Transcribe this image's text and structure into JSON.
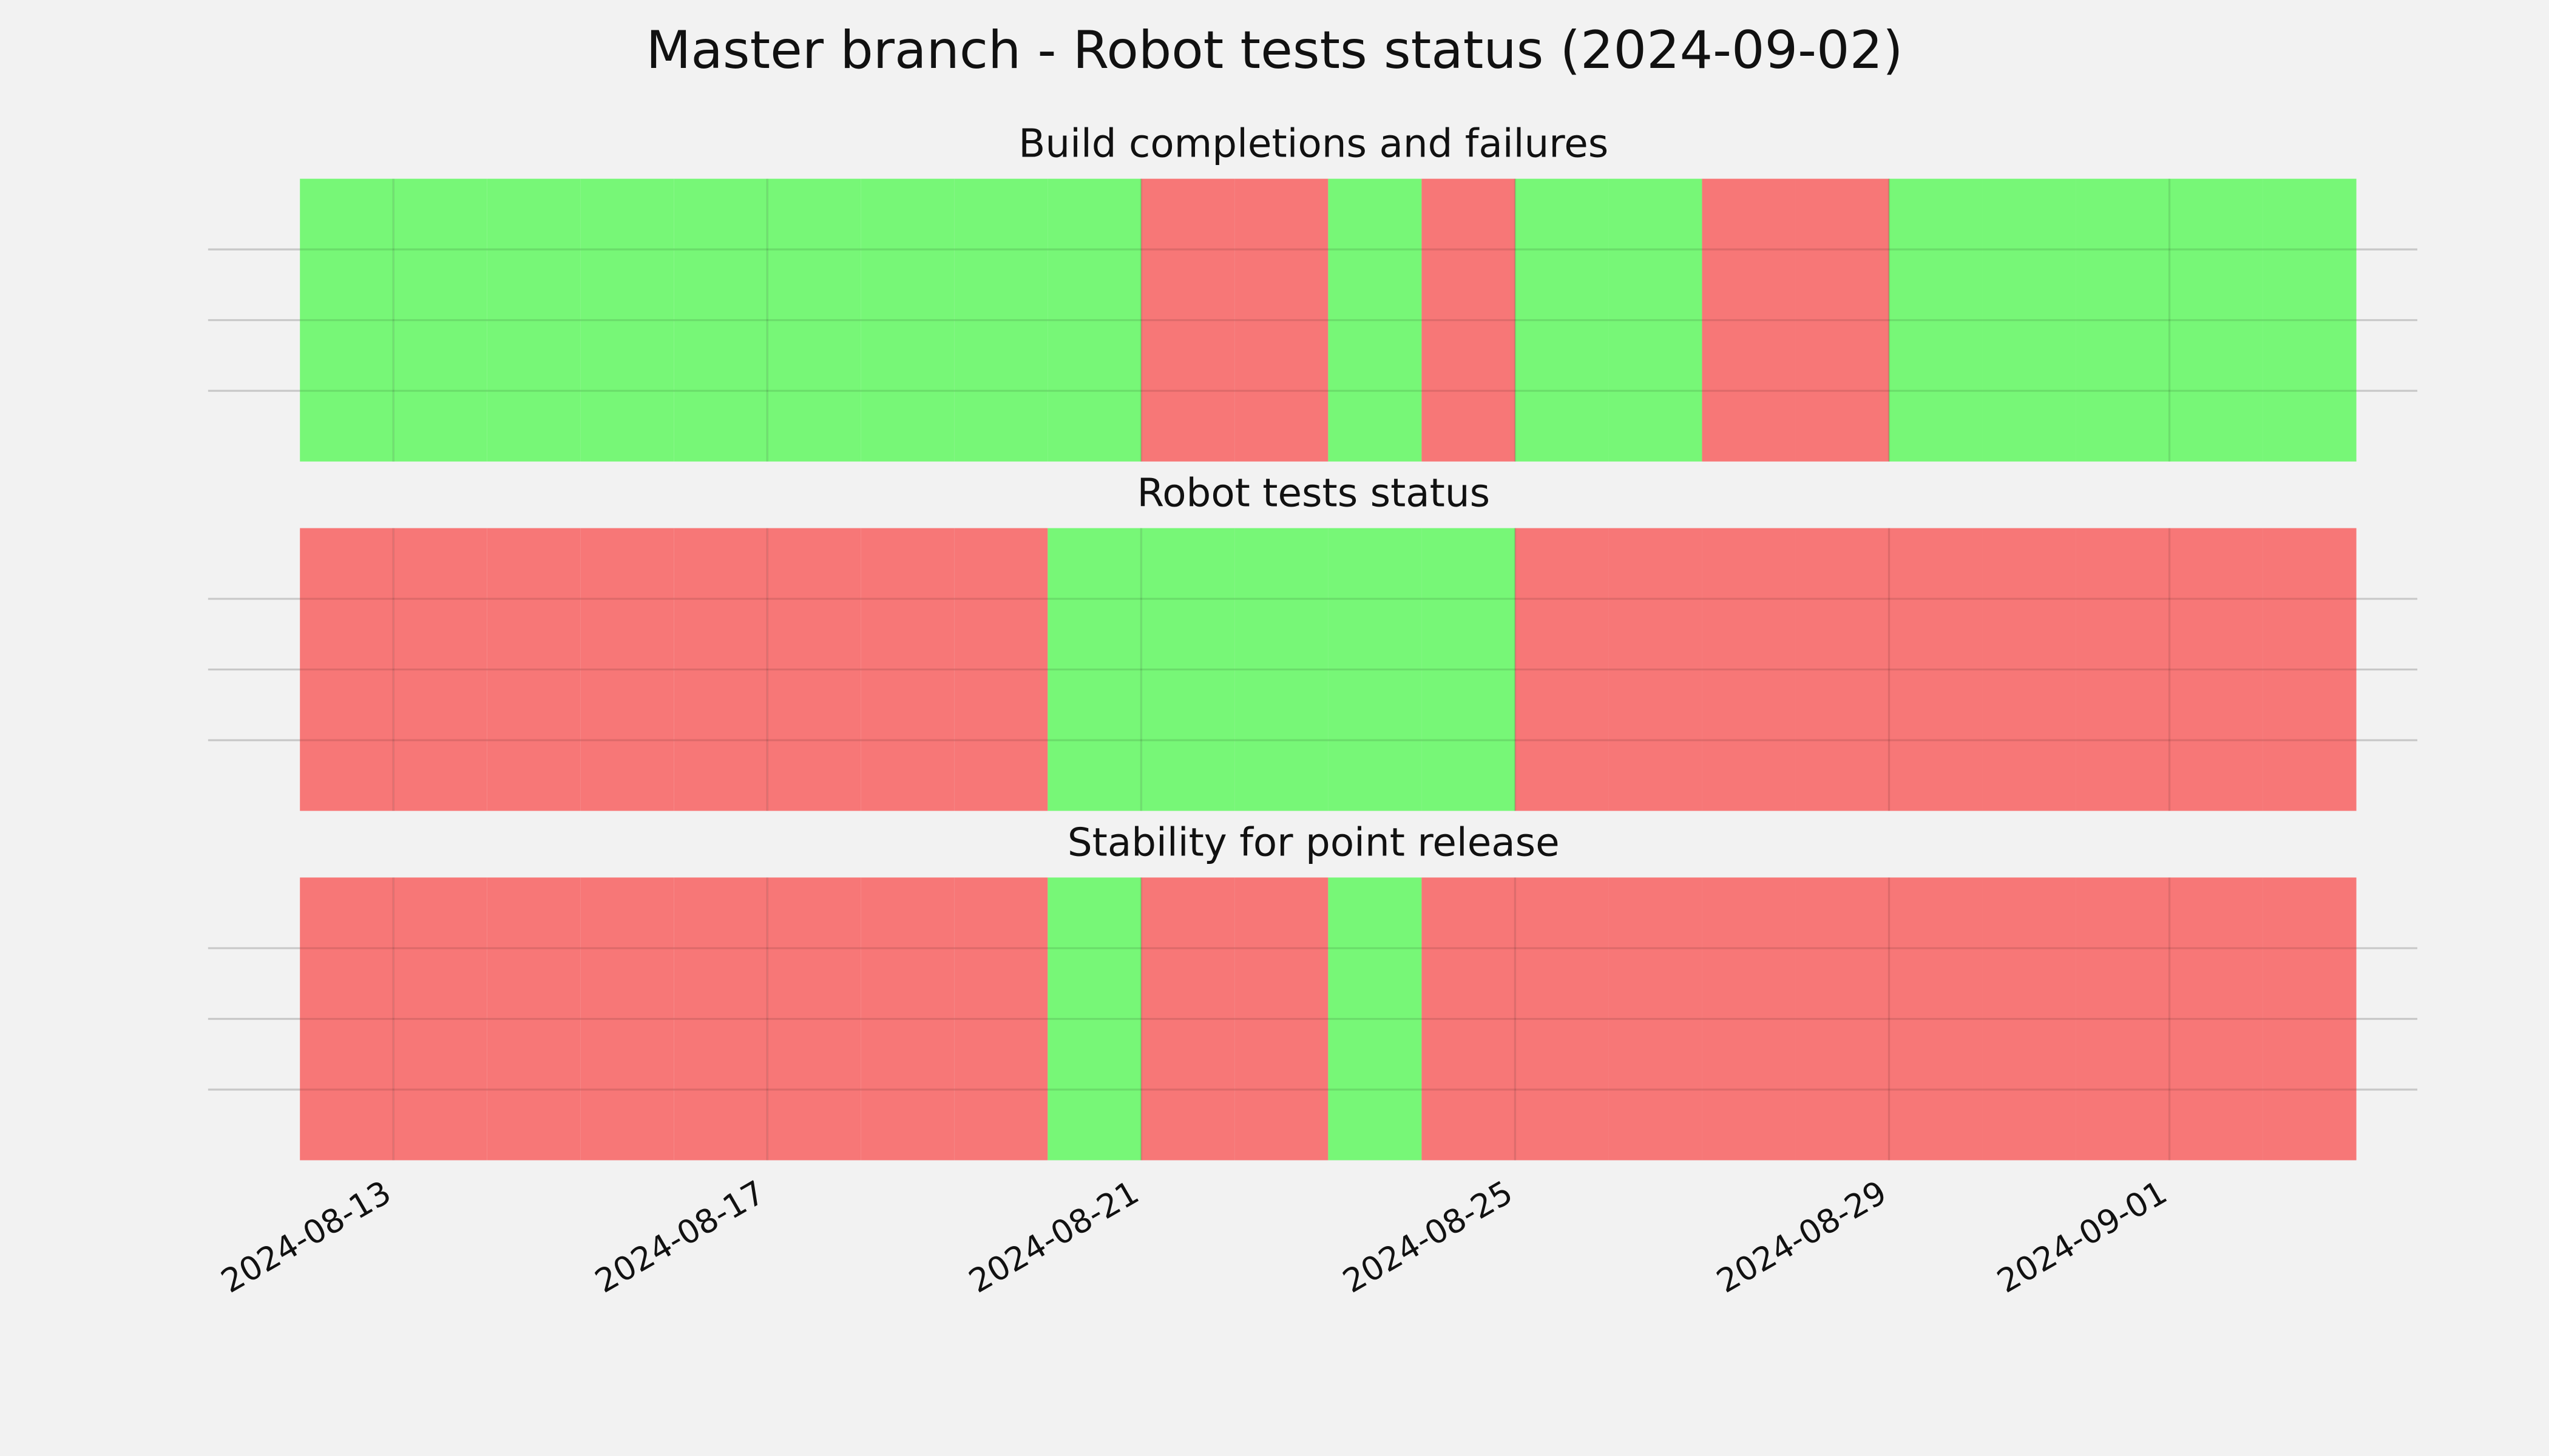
{
  "chart_data": {
    "type": "timeline",
    "title": "Master branch - Robot tests status (2024-09-02)",
    "x": [
      "2024-08-12",
      "2024-08-13",
      "2024-08-14",
      "2024-08-15",
      "2024-08-16",
      "2024-08-17",
      "2024-08-18",
      "2024-08-19",
      "2024-08-20",
      "2024-08-21",
      "2024-08-22",
      "2024-08-23",
      "2024-08-24",
      "2024-08-25",
      "2024-08-26",
      "2024-08-27",
      "2024-08-28",
      "2024-08-29",
      "2024-08-30",
      "2024-08-31",
      "2024-09-01",
      "2024-09-02"
    ],
    "xlim": [
      "2024-08-11",
      "2024-09-04"
    ],
    "xticks": [
      "2024-08-13",
      "2024-08-17",
      "2024-08-21",
      "2024-08-25",
      "2024-08-29",
      "2024-09-01"
    ],
    "ylim": [
      0,
      1
    ],
    "yticks": [
      0.25,
      0.5,
      0.75
    ],
    "grid": true,
    "colors": {
      "pass": "#77f777",
      "fail": "#f77777"
    },
    "panels": [
      {
        "title": "Build completions and failures",
        "values": [
          "pass",
          "pass",
          "pass",
          "pass",
          "pass",
          "pass",
          "pass",
          "pass",
          "pass",
          "fail",
          "fail",
          "pass",
          "fail",
          "pass",
          "pass",
          "fail",
          "fail",
          "pass",
          "pass",
          "pass",
          "pass",
          "pass"
        ]
      },
      {
        "title": "Robot tests status",
        "values": [
          "fail",
          "fail",
          "fail",
          "fail",
          "fail",
          "fail",
          "fail",
          "fail",
          "pass",
          "pass",
          "pass",
          "pass",
          "pass",
          "fail",
          "fail",
          "fail",
          "fail",
          "fail",
          "fail",
          "fail",
          "fail",
          "fail"
        ]
      },
      {
        "title": "Stability for point release",
        "values": [
          "fail",
          "fail",
          "fail",
          "fail",
          "fail",
          "fail",
          "fail",
          "fail",
          "pass",
          "fail",
          "fail",
          "pass",
          "fail",
          "fail",
          "fail",
          "fail",
          "fail",
          "fail",
          "fail",
          "fail",
          "fail",
          "fail"
        ]
      }
    ]
  }
}
